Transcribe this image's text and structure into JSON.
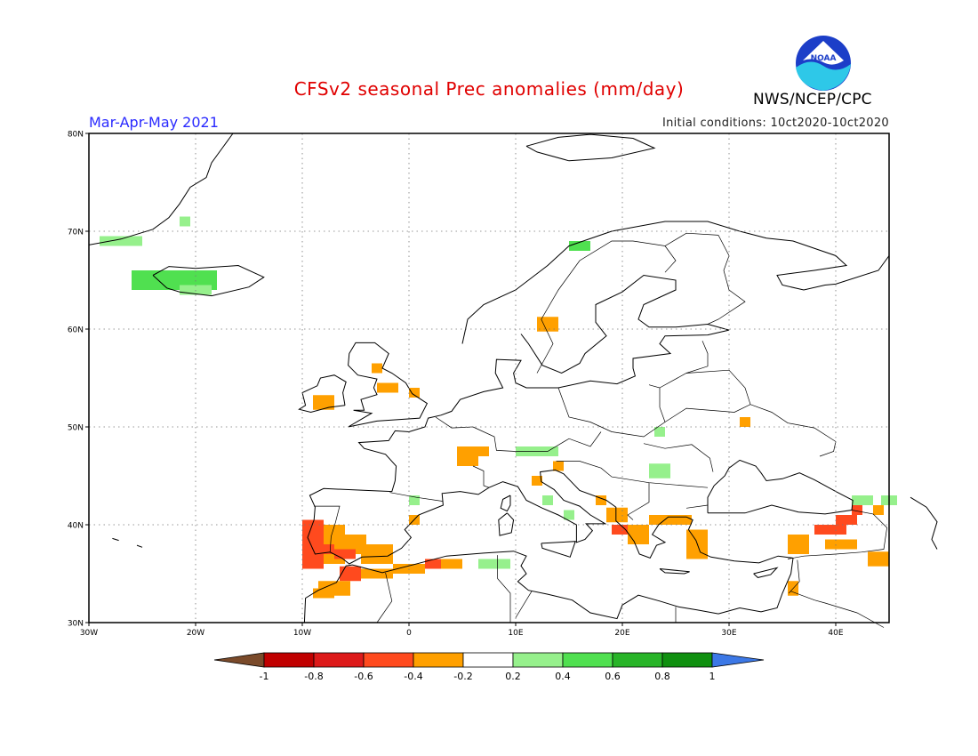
{
  "header": {
    "title": "CFSv2 seasonal Prec anomalies (mm/day)",
    "season": "Mar-Apr-May 2021",
    "initial_conditions": "Initial conditions: 10ct2020-10ct2020",
    "agency": "NWS/NCEP/CPC",
    "logo_text": "NOAA"
  },
  "map": {
    "projection": "lat-lon",
    "lon_range": [
      -30,
      45
    ],
    "lat_range": [
      30,
      80
    ],
    "lat_ticks": [
      "80N",
      "70N",
      "60N",
      "50N",
      "40N",
      "30N"
    ],
    "lon_ticks": [
      "30W",
      "20W",
      "10W",
      "0",
      "10E",
      "20E",
      "30E",
      "40E"
    ],
    "grid": "dotted"
  },
  "colorbar": {
    "labels": [
      "-1",
      "-0.8",
      "-0.6",
      "-0.4",
      "-0.2",
      "0.2",
      "0.4",
      "0.6",
      "0.8",
      "1"
    ],
    "colors": [
      "#7a4a2a",
      "#c00000",
      "#dd1a1a",
      "#ff4a1e",
      "#ffa000",
      "#ffffff",
      "#96f08c",
      "#50e050",
      "#28b428",
      "#109010",
      "#3c78e6"
    ]
  },
  "chart_data": {
    "type": "heatmap",
    "variable": "precipitation anomaly",
    "units": "mm/day",
    "cells": [
      {
        "lon": -27,
        "lat": 69,
        "w": 4,
        "h": 1,
        "v": 0.3
      },
      {
        "lon": -21,
        "lat": 71,
        "w": 1,
        "h": 1,
        "v": 0.3
      },
      {
        "lon": -22,
        "lat": 65,
        "w": 8,
        "h": 2,
        "v": 0.5
      },
      {
        "lon": -20,
        "lat": 64,
        "w": 3,
        "h": 1,
        "v": 0.3
      },
      {
        "lon": 16,
        "lat": 68.5,
        "w": 2,
        "h": 1,
        "v": 0.4
      },
      {
        "lon": 13,
        "lat": 60.5,
        "w": 2,
        "h": 1.5,
        "v": -0.3
      },
      {
        "lon": -8,
        "lat": 52.5,
        "w": 2,
        "h": 1.5,
        "v": -0.3
      },
      {
        "lon": -2,
        "lat": 54,
        "w": 2,
        "h": 1,
        "v": -0.3
      },
      {
        "lon": 0.5,
        "lat": 53.5,
        "w": 1,
        "h": 1,
        "v": -0.3
      },
      {
        "lon": -3,
        "lat": 56,
        "w": 1,
        "h": 1,
        "v": -0.3
      },
      {
        "lon": 6,
        "lat": 47.5,
        "w": 3,
        "h": 1,
        "v": -0.3
      },
      {
        "lon": 5.5,
        "lat": 46.5,
        "w": 2,
        "h": 1,
        "v": -0.3
      },
      {
        "lon": 12,
        "lat": 47.5,
        "w": 4,
        "h": 1,
        "v": 0.3
      },
      {
        "lon": 23.5,
        "lat": 45.5,
        "w": 2,
        "h": 1.5,
        "v": 0.3
      },
      {
        "lon": 23.5,
        "lat": 49.5,
        "w": 1,
        "h": 1,
        "v": 0.3
      },
      {
        "lon": 31.5,
        "lat": 50.5,
        "w": 1,
        "h": 1,
        "v": -0.3
      },
      {
        "lon": 14,
        "lat": 46,
        "w": 1,
        "h": 1,
        "v": -0.3
      },
      {
        "lon": 12,
        "lat": 44.5,
        "w": 1,
        "h": 1,
        "v": -0.3
      },
      {
        "lon": 13,
        "lat": 42.5,
        "w": 1,
        "h": 1,
        "v": 0.3
      },
      {
        "lon": 15,
        "lat": 41,
        "w": 1,
        "h": 1,
        "v": 0.3
      },
      {
        "lon": 8,
        "lat": 36,
        "w": 3,
        "h": 1,
        "v": 0.3
      },
      {
        "lon": 0.5,
        "lat": 42.5,
        "w": 1,
        "h": 1,
        "v": 0.3
      },
      {
        "lon": 0.5,
        "lat": 40.5,
        "w": 1,
        "h": 1,
        "v": -0.3
      },
      {
        "lon": -9,
        "lat": 38,
        "w": 2,
        "h": 5,
        "v": -0.5
      },
      {
        "lon": -7,
        "lat": 38,
        "w": 2,
        "h": 4,
        "v": -0.3
      },
      {
        "lon": -5.5,
        "lat": 38,
        "w": 3,
        "h": 2,
        "v": -0.3
      },
      {
        "lon": -3,
        "lat": 37,
        "w": 3,
        "h": 2,
        "v": -0.3
      },
      {
        "lon": -8,
        "lat": 37.5,
        "w": 2,
        "h": 1,
        "v": -0.5
      },
      {
        "lon": -6,
        "lat": 37,
        "w": 2,
        "h": 1,
        "v": -0.5
      },
      {
        "lon": -5.5,
        "lat": 35,
        "w": 2,
        "h": 1.5,
        "v": -0.5
      },
      {
        "lon": -3,
        "lat": 35,
        "w": 3,
        "h": 1,
        "v": -0.3
      },
      {
        "lon": 0,
        "lat": 35.5,
        "w": 3,
        "h": 1,
        "v": -0.3
      },
      {
        "lon": 2.5,
        "lat": 36,
        "w": 2,
        "h": 1,
        "v": -0.5
      },
      {
        "lon": 4,
        "lat": 36,
        "w": 2,
        "h": 1,
        "v": -0.3
      },
      {
        "lon": -7,
        "lat": 33.5,
        "w": 3,
        "h": 1.5,
        "v": -0.3
      },
      {
        "lon": -8,
        "lat": 33,
        "w": 2,
        "h": 1,
        "v": -0.3
      },
      {
        "lon": 19.5,
        "lat": 41,
        "w": 2,
        "h": 1.5,
        "v": -0.3
      },
      {
        "lon": 20,
        "lat": 39.5,
        "w": 2,
        "h": 1,
        "v": -0.5
      },
      {
        "lon": 21.5,
        "lat": 39,
        "w": 2,
        "h": 2,
        "v": -0.3
      },
      {
        "lon": 18,
        "lat": 42.5,
        "w": 1,
        "h": 1,
        "v": -0.3
      },
      {
        "lon": 24.5,
        "lat": 40.5,
        "w": 4,
        "h": 1,
        "v": -0.3
      },
      {
        "lon": 27,
        "lat": 38,
        "w": 2,
        "h": 3,
        "v": -0.3
      },
      {
        "lon": 36.5,
        "lat": 38,
        "w": 2,
        "h": 2,
        "v": -0.3
      },
      {
        "lon": 39.5,
        "lat": 39.5,
        "w": 3,
        "h": 1,
        "v": -0.5
      },
      {
        "lon": 41,
        "lat": 40.5,
        "w": 2,
        "h": 1,
        "v": -0.5
      },
      {
        "lon": 42,
        "lat": 41.5,
        "w": 1,
        "h": 1,
        "v": -0.5
      },
      {
        "lon": 40.5,
        "lat": 38,
        "w": 3,
        "h": 1,
        "v": -0.3
      },
      {
        "lon": 42.5,
        "lat": 42.5,
        "w": 2,
        "h": 1,
        "v": 0.3
      },
      {
        "lon": 44,
        "lat": 41.5,
        "w": 1,
        "h": 1,
        "v": -0.3
      },
      {
        "lon": 45,
        "lat": 42.5,
        "w": 1.5,
        "h": 1,
        "v": 0.3
      },
      {
        "lon": 44,
        "lat": 36.5,
        "w": 2,
        "h": 1.5,
        "v": -0.3
      },
      {
        "lon": 36,
        "lat": 33.5,
        "w": 1,
        "h": 1.5,
        "v": -0.3
      }
    ]
  }
}
